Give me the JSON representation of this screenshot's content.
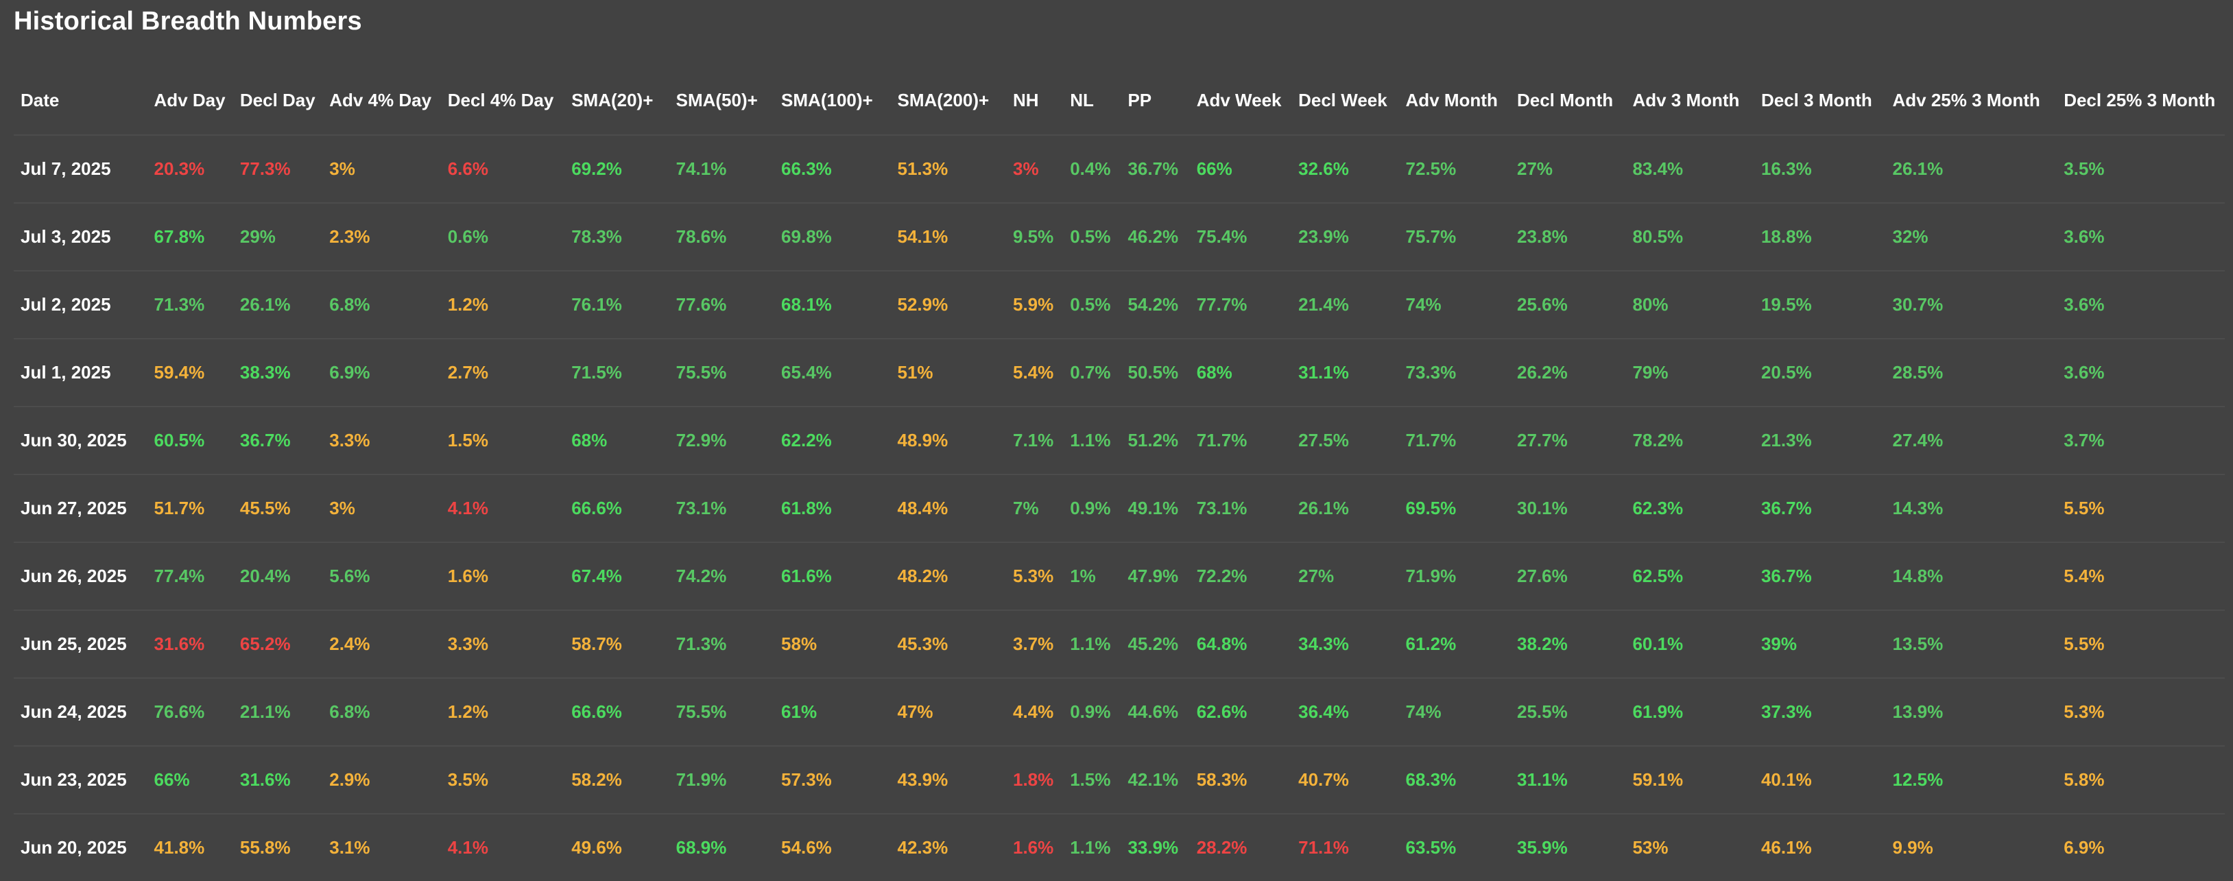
{
  "title": "Historical Breadth Numbers",
  "colors": {
    "background": "#424242",
    "strong_green": "#4cdb5f",
    "green": "#58c864",
    "yellow": "#f4b23a",
    "red": "#ee4444"
  },
  "columns": [
    "Date",
    "Adv Day",
    "Decl Day",
    "Adv 4% Day",
    "Decl 4% Day",
    "SMA(20)+",
    "SMA(50)+",
    "SMA(100)+",
    "SMA(200)+",
    "NH",
    "NL",
    "PP",
    "Adv Week",
    "Decl Week",
    "Adv Month",
    "Decl Month",
    "Adv 3 Month",
    "Decl 3 Month",
    "Adv 25% 3 Month",
    "Decl 25% 3 Month"
  ],
  "rows": [
    {
      "cells": [
        "Jul 7, 2025",
        "20.3%",
        "77.3%",
        "3%",
        "6.6%",
        "69.2%",
        "74.1%",
        "66.3%",
        "51.3%",
        "3%",
        "0.4%",
        "36.7%",
        "66%",
        "32.6%",
        "72.5%",
        "27%",
        "83.4%",
        "16.3%",
        "26.1%",
        "3.5%"
      ],
      "tones": [
        "d",
        "r",
        "r",
        "y",
        "r",
        "g",
        "g2",
        "g",
        "y",
        "r",
        "g2",
        "g2",
        "g",
        "g",
        "g2",
        "g2",
        "g2",
        "g2",
        "g2",
        "g2"
      ]
    },
    {
      "cells": [
        "Jul 3, 2025",
        "67.8%",
        "29%",
        "2.3%",
        "0.6%",
        "78.3%",
        "78.6%",
        "69.8%",
        "54.1%",
        "9.5%",
        "0.5%",
        "46.2%",
        "75.4%",
        "23.9%",
        "75.7%",
        "23.8%",
        "80.5%",
        "18.8%",
        "32%",
        "3.6%"
      ],
      "tones": [
        "d",
        "g",
        "g2",
        "y",
        "g2",
        "g2",
        "g2",
        "g2",
        "y",
        "g2",
        "g2",
        "g2",
        "g2",
        "g2",
        "g2",
        "g2",
        "g2",
        "g2",
        "g2",
        "g2"
      ]
    },
    {
      "cells": [
        "Jul 2, 2025",
        "71.3%",
        "26.1%",
        "6.8%",
        "1.2%",
        "76.1%",
        "77.6%",
        "68.1%",
        "52.9%",
        "5.9%",
        "0.5%",
        "54.2%",
        "77.7%",
        "21.4%",
        "74%",
        "25.6%",
        "80%",
        "19.5%",
        "30.7%",
        "3.6%"
      ],
      "tones": [
        "d",
        "g2",
        "g2",
        "g2",
        "y",
        "g2",
        "g2",
        "g",
        "y",
        "y",
        "g2",
        "g2",
        "g2",
        "g2",
        "g2",
        "g2",
        "g2",
        "g2",
        "g2",
        "g2"
      ]
    },
    {
      "cells": [
        "Jul 1, 2025",
        "59.4%",
        "38.3%",
        "6.9%",
        "2.7%",
        "71.5%",
        "75.5%",
        "65.4%",
        "51%",
        "5.4%",
        "0.7%",
        "50.5%",
        "68%",
        "31.1%",
        "73.3%",
        "26.2%",
        "79%",
        "20.5%",
        "28.5%",
        "3.6%"
      ],
      "tones": [
        "d",
        "y",
        "g",
        "g2",
        "y",
        "g2",
        "g2",
        "g2",
        "y",
        "y",
        "g2",
        "g2",
        "g",
        "g",
        "g2",
        "g2",
        "g2",
        "g2",
        "g2",
        "g2"
      ]
    },
    {
      "cells": [
        "Jun 30, 2025",
        "60.5%",
        "36.7%",
        "3.3%",
        "1.5%",
        "68%",
        "72.9%",
        "62.2%",
        "48.9%",
        "7.1%",
        "1.1%",
        "51.2%",
        "71.7%",
        "27.5%",
        "71.7%",
        "27.7%",
        "78.2%",
        "21.3%",
        "27.4%",
        "3.7%"
      ],
      "tones": [
        "d",
        "g",
        "g",
        "y",
        "y",
        "g",
        "g2",
        "g",
        "y",
        "g2",
        "g2",
        "g2",
        "g2",
        "g2",
        "g2",
        "g2",
        "g2",
        "g2",
        "g2",
        "g2"
      ]
    },
    {
      "cells": [
        "Jun 27, 2025",
        "51.7%",
        "45.5%",
        "3%",
        "4.1%",
        "66.6%",
        "73.1%",
        "61.8%",
        "48.4%",
        "7%",
        "0.9%",
        "49.1%",
        "73.1%",
        "26.1%",
        "69.5%",
        "30.1%",
        "62.3%",
        "36.7%",
        "14.3%",
        "5.5%"
      ],
      "tones": [
        "d",
        "y",
        "y",
        "y",
        "r",
        "g",
        "g2",
        "g",
        "y",
        "g2",
        "g2",
        "g2",
        "g2",
        "g2",
        "g",
        "g2",
        "g",
        "g",
        "g2",
        "y"
      ]
    },
    {
      "cells": [
        "Jun 26, 2025",
        "77.4%",
        "20.4%",
        "5.6%",
        "1.6%",
        "67.4%",
        "74.2%",
        "61.6%",
        "48.2%",
        "5.3%",
        "1%",
        "47.9%",
        "72.2%",
        "27%",
        "71.9%",
        "27.6%",
        "62.5%",
        "36.7%",
        "14.8%",
        "5.4%"
      ],
      "tones": [
        "d",
        "g2",
        "g2",
        "g2",
        "y",
        "g",
        "g2",
        "g",
        "y",
        "y",
        "g2",
        "g2",
        "g2",
        "g2",
        "g2",
        "g2",
        "g",
        "g",
        "g2",
        "y"
      ]
    },
    {
      "cells": [
        "Jun 25, 2025",
        "31.6%",
        "65.2%",
        "2.4%",
        "3.3%",
        "58.7%",
        "71.3%",
        "58%",
        "45.3%",
        "3.7%",
        "1.1%",
        "45.2%",
        "64.8%",
        "34.3%",
        "61.2%",
        "38.2%",
        "60.1%",
        "39%",
        "13.5%",
        "5.5%"
      ],
      "tones": [
        "d",
        "r",
        "r",
        "y",
        "y",
        "y",
        "g2",
        "y",
        "y",
        "y",
        "g2",
        "g2",
        "g",
        "g",
        "g",
        "g",
        "g",
        "g",
        "g2",
        "y"
      ]
    },
    {
      "cells": [
        "Jun 24, 2025",
        "76.6%",
        "21.1%",
        "6.8%",
        "1.2%",
        "66.6%",
        "75.5%",
        "61%",
        "47%",
        "4.4%",
        "0.9%",
        "44.6%",
        "62.6%",
        "36.4%",
        "74%",
        "25.5%",
        "61.9%",
        "37.3%",
        "13.9%",
        "5.3%"
      ],
      "tones": [
        "d",
        "g2",
        "g2",
        "g2",
        "y",
        "g",
        "g2",
        "g",
        "y",
        "y",
        "g2",
        "g2",
        "g",
        "g",
        "g2",
        "g2",
        "g",
        "g",
        "g2",
        "y"
      ]
    },
    {
      "cells": [
        "Jun 23, 2025",
        "66%",
        "31.6%",
        "2.9%",
        "3.5%",
        "58.2%",
        "71.9%",
        "57.3%",
        "43.9%",
        "1.8%",
        "1.5%",
        "42.1%",
        "58.3%",
        "40.7%",
        "68.3%",
        "31.1%",
        "59.1%",
        "40.1%",
        "12.5%",
        "5.8%"
      ],
      "tones": [
        "d",
        "g",
        "g",
        "y",
        "y",
        "y",
        "g2",
        "y",
        "y",
        "r",
        "g2",
        "g2",
        "y",
        "y",
        "g",
        "g",
        "y",
        "y",
        "g",
        "y"
      ]
    },
    {
      "cells": [
        "Jun 20, 2025",
        "41.8%",
        "55.8%",
        "3.1%",
        "4.1%",
        "49.6%",
        "68.9%",
        "54.6%",
        "42.3%",
        "1.6%",
        "1.1%",
        "33.9%",
        "28.2%",
        "71.1%",
        "63.5%",
        "35.9%",
        "53%",
        "46.1%",
        "9.9%",
        "6.9%"
      ],
      "tones": [
        "d",
        "y",
        "y",
        "y",
        "r",
        "y",
        "g",
        "y",
        "y",
        "r",
        "g2",
        "g",
        "r",
        "r",
        "g",
        "g",
        "y",
        "y",
        "y",
        "y"
      ]
    }
  ]
}
